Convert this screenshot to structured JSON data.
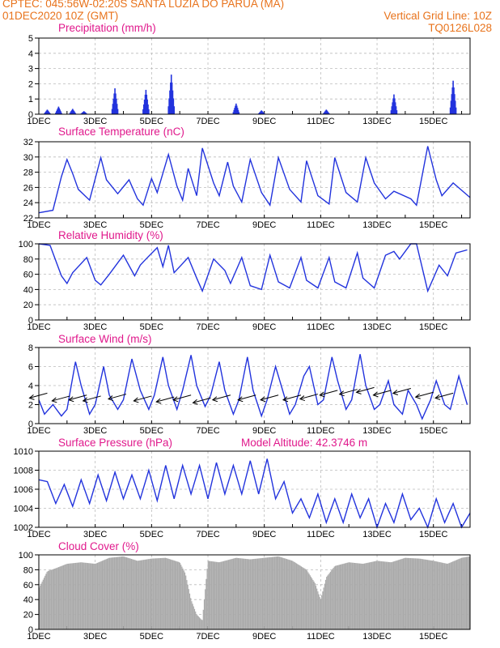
{
  "header": {
    "line1_left": "CPTEC:   045:56W-02:20S   SANTA LUZIA DO PARUA (MA)",
    "line2_left": "01DEC2020 10Z (GMT)",
    "line2_right": "Vertical Grid Line: 10Z",
    "line3_right": "TQ0126L028"
  },
  "colors": {
    "header": "#e8731c",
    "title": "#e0198c",
    "series": "#2233dd",
    "cloud": "#aaaaaa",
    "arrow": "#000000"
  },
  "x_tick_labels": [
    "1DEC",
    "3DEC",
    "5DEC",
    "7DEC",
    "9DEC",
    "11DEC",
    "13DEC",
    "15DEC"
  ],
  "model_altitude": "Model Altitude: 42.3746 m",
  "chart_data": [
    {
      "id": "precip",
      "type": "bar",
      "title": "Precipitation (mm/h)",
      "ylim": [
        0,
        5
      ],
      "yticks": [
        "0",
        "1",
        "2",
        "3",
        "4",
        "5"
      ],
      "x_range_days": [
        1,
        16.3
      ],
      "bursts": [
        {
          "day": 1.3,
          "peak": 0.3
        },
        {
          "day": 1.7,
          "peak": 0.5
        },
        {
          "day": 2.2,
          "peak": 0.35
        },
        {
          "day": 2.6,
          "peak": 0.2
        },
        {
          "day": 3.7,
          "peak": 1.7
        },
        {
          "day": 4.8,
          "peak": 1.6
        },
        {
          "day": 5.7,
          "peak": 2.6
        },
        {
          "day": 8.0,
          "peak": 0.7
        },
        {
          "day": 8.9,
          "peak": 0.25
        },
        {
          "day": 11.2,
          "peak": 0.3
        },
        {
          "day": 13.6,
          "peak": 1.3
        },
        {
          "day": 15.7,
          "peak": 2.2
        }
      ]
    },
    {
      "id": "temp",
      "type": "line",
      "title": "Surface Temperature (nC)",
      "ylim": [
        21,
        33
      ],
      "yticks": [
        "22",
        "24",
        "26",
        "28",
        "30",
        "32"
      ],
      "x_range_days": [
        1,
        16.3
      ],
      "x": [
        1.0,
        1.5,
        1.8,
        2.0,
        2.2,
        2.4,
        2.8,
        3.2,
        3.4,
        3.8,
        4.2,
        4.5,
        4.7,
        5.0,
        5.2,
        5.6,
        5.9,
        6.1,
        6.3,
        6.6,
        6.8,
        7.2,
        7.4,
        7.7,
        7.9,
        8.2,
        8.5,
        8.9,
        9.2,
        9.5,
        9.9,
        10.3,
        10.5,
        10.9,
        11.3,
        11.5,
        11.9,
        12.3,
        12.6,
        12.9,
        13.3,
        13.6,
        14.2,
        14.4,
        14.8,
        15.1,
        15.3,
        15.7,
        16.3
      ],
      "y": [
        21.8,
        22.2,
        27.5,
        30.2,
        28.0,
        25.5,
        23.8,
        30.5,
        27.0,
        24.8,
        27.0,
        24.0,
        23.0,
        27.2,
        25.0,
        31.0,
        26.0,
        23.8,
        28.8,
        24.5,
        32.0,
        26.5,
        24.5,
        29.8,
        26.0,
        23.5,
        30.2,
        25.0,
        23.0,
        30.5,
        25.5,
        23.5,
        30.0,
        24.5,
        23.2,
        30.5,
        25.0,
        23.5,
        30.5,
        26.5,
        24.0,
        25.2,
        24.0,
        23.0,
        32.3,
        27.0,
        24.5,
        26.5,
        24.2
      ]
    },
    {
      "id": "rh",
      "type": "line",
      "title": "Relative Humidity (%)",
      "ylim": [
        0,
        100
      ],
      "yticks": [
        "0",
        "20",
        "40",
        "60",
        "80",
        "100"
      ],
      "x_range_days": [
        1,
        16.3
      ],
      "x": [
        1.0,
        1.4,
        1.8,
        2.0,
        2.2,
        2.7,
        3.0,
        3.2,
        3.5,
        4.0,
        4.4,
        4.6,
        4.8,
        5.2,
        5.4,
        5.6,
        5.8,
        6.3,
        6.6,
        6.8,
        7.2,
        7.6,
        7.8,
        8.2,
        8.5,
        8.9,
        9.2,
        9.5,
        9.9,
        10.3,
        10.5,
        10.9,
        11.3,
        11.5,
        11.9,
        12.3,
        12.5,
        12.9,
        13.3,
        13.6,
        13.8,
        14.2,
        14.4,
        14.8,
        15.2,
        15.5,
        15.8,
        16.2
      ],
      "y": [
        100,
        98,
        58,
        48,
        62,
        82,
        52,
        46,
        60,
        85,
        58,
        72,
        80,
        95,
        70,
        98,
        62,
        82,
        55,
        38,
        80,
        65,
        48,
        82,
        45,
        40,
        85,
        50,
        42,
        82,
        52,
        42,
        82,
        50,
        42,
        88,
        55,
        42,
        85,
        90,
        80,
        100,
        100,
        38,
        72,
        58,
        88,
        92
      ]
    },
    {
      "id": "wind",
      "type": "line",
      "title": "Surface Wind (m/s)",
      "ylim": [
        0,
        8
      ],
      "yticks": [
        "0",
        "2",
        "4",
        "6",
        "8"
      ],
      "x_range_days": [
        1,
        16.3
      ],
      "x": [
        1.0,
        1.2,
        1.5,
        1.8,
        2.0,
        2.3,
        2.5,
        2.8,
        3.0,
        3.3,
        3.5,
        3.8,
        4.0,
        4.3,
        4.6,
        4.9,
        5.1,
        5.4,
        5.6,
        5.9,
        6.1,
        6.4,
        6.6,
        6.9,
        7.1,
        7.4,
        7.6,
        7.9,
        8.1,
        8.4,
        8.6,
        8.9,
        9.1,
        9.4,
        9.6,
        9.9,
        10.1,
        10.4,
        10.6,
        10.9,
        11.1,
        11.4,
        11.6,
        11.9,
        12.1,
        12.4,
        12.6,
        12.9,
        13.1,
        13.4,
        13.6,
        13.9,
        14.1,
        14.4,
        14.6,
        14.9,
        15.1,
        15.4,
        15.6,
        15.9,
        16.2
      ],
      "y": [
        2.5,
        1.0,
        2.0,
        0.8,
        1.5,
        6.5,
        4.0,
        1.0,
        2.0,
        6.0,
        3.0,
        1.5,
        2.5,
        6.8,
        3.5,
        1.5,
        3.0,
        7.0,
        4.0,
        1.5,
        3.5,
        7.2,
        4.0,
        1.8,
        3.0,
        6.5,
        3.5,
        1.0,
        2.5,
        7.0,
        3.5,
        0.8,
        2.5,
        6.0,
        4.0,
        1.0,
        2.0,
        5.0,
        6.0,
        2.0,
        2.5,
        7.0,
        4.5,
        1.5,
        2.5,
        7.3,
        4.0,
        1.5,
        2.0,
        4.5,
        2.0,
        1.0,
        3.5,
        2.0,
        0.5,
        2.5,
        4.5,
        2.0,
        1.5,
        5.0,
        2.0
      ],
      "arrows": [
        {
          "day": 1.3,
          "speed": 3.2
        },
        {
          "day": 2.1,
          "speed": 2.9
        },
        {
          "day": 2.7,
          "speed": 3.0
        },
        {
          "day": 3.2,
          "speed": 2.9
        },
        {
          "day": 4.1,
          "speed": 3.1
        },
        {
          "day": 5.0,
          "speed": 2.9
        },
        {
          "day": 5.8,
          "speed": 2.8
        },
        {
          "day": 6.4,
          "speed": 3.0
        },
        {
          "day": 7.1,
          "speed": 2.7
        },
        {
          "day": 7.8,
          "speed": 3.0
        },
        {
          "day": 8.7,
          "speed": 3.0
        },
        {
          "day": 9.5,
          "speed": 3.0
        },
        {
          "day": 10.3,
          "speed": 3.0
        },
        {
          "day": 10.9,
          "speed": 3.1
        },
        {
          "day": 11.6,
          "speed": 3.5
        },
        {
          "day": 12.3,
          "speed": 3.6
        },
        {
          "day": 12.9,
          "speed": 3.8
        },
        {
          "day": 13.5,
          "speed": 3.5
        },
        {
          "day": 14.2,
          "speed": 3.7
        },
        {
          "day": 15.0,
          "speed": 3.3
        },
        {
          "day": 15.7,
          "speed": 3.2
        }
      ]
    },
    {
      "id": "pres",
      "type": "line",
      "title": "Surface Pressure (hPa)",
      "ylim": [
        1002,
        1010
      ],
      "yticks": [
        "1002",
        "1004",
        "1006",
        "1008",
        "1010"
      ],
      "x_range_days": [
        1,
        16.3
      ],
      "x": [
        1.0,
        1.3,
        1.6,
        1.9,
        2.2,
        2.5,
        2.8,
        3.1,
        3.4,
        3.7,
        4.0,
        4.3,
        4.6,
        4.9,
        5.2,
        5.5,
        5.8,
        6.1,
        6.4,
        6.7,
        7.0,
        7.3,
        7.6,
        7.9,
        8.2,
        8.5,
        8.8,
        9.1,
        9.4,
        9.7,
        10.0,
        10.3,
        10.6,
        10.9,
        11.2,
        11.5,
        11.8,
        12.1,
        12.4,
        12.7,
        13.0,
        13.3,
        13.6,
        13.9,
        14.2,
        14.5,
        14.8,
        15.1,
        15.4,
        15.7,
        16.0,
        16.3
      ],
      "y": [
        1007.0,
        1006.8,
        1004.5,
        1006.5,
        1004.2,
        1007.0,
        1004.5,
        1007.5,
        1004.8,
        1007.8,
        1005.0,
        1007.5,
        1005.0,
        1008.0,
        1004.8,
        1008.5,
        1005.0,
        1008.5,
        1005.5,
        1008.5,
        1005.0,
        1008.8,
        1005.5,
        1008.5,
        1005.5,
        1009.0,
        1005.5,
        1009.2,
        1005.0,
        1006.8,
        1003.5,
        1005.0,
        1003.0,
        1005.5,
        1002.5,
        1005.0,
        1002.5,
        1005.5,
        1003.0,
        1005.0,
        1002.0,
        1004.5,
        1002.5,
        1005.5,
        1002.8,
        1004.0,
        1002.0,
        1005.0,
        1002.5,
        1004.5,
        1002.0,
        1003.5
      ]
    },
    {
      "id": "cloud",
      "type": "bar",
      "title": "Cloud Cover (%)",
      "ylim": [
        0,
        100
      ],
      "yticks": [
        "0",
        "20",
        "40",
        "60",
        "80",
        "100"
      ],
      "x_range_days": [
        1,
        16.3
      ],
      "x": [
        1.0,
        1.3,
        1.6,
        2.0,
        2.5,
        3.0,
        3.5,
        4.0,
        4.5,
        5.0,
        5.5,
        6.0,
        6.2,
        6.4,
        6.6,
        6.8,
        7.0,
        7.4,
        8.0,
        8.5,
        9.0,
        9.5,
        10.0,
        10.5,
        10.8,
        11.0,
        11.2,
        11.5,
        12.0,
        12.5,
        13.0,
        13.5,
        14.0,
        14.5,
        15.0,
        15.5,
        16.0,
        16.3
      ],
      "y": [
        55,
        78,
        82,
        88,
        90,
        88,
        96,
        98,
        92,
        95,
        96,
        90,
        75,
        40,
        20,
        12,
        92,
        90,
        96,
        94,
        96,
        98,
        92,
        80,
        62,
        40,
        70,
        85,
        90,
        88,
        92,
        90,
        96,
        95,
        92,
        88,
        96,
        98
      ]
    }
  ]
}
